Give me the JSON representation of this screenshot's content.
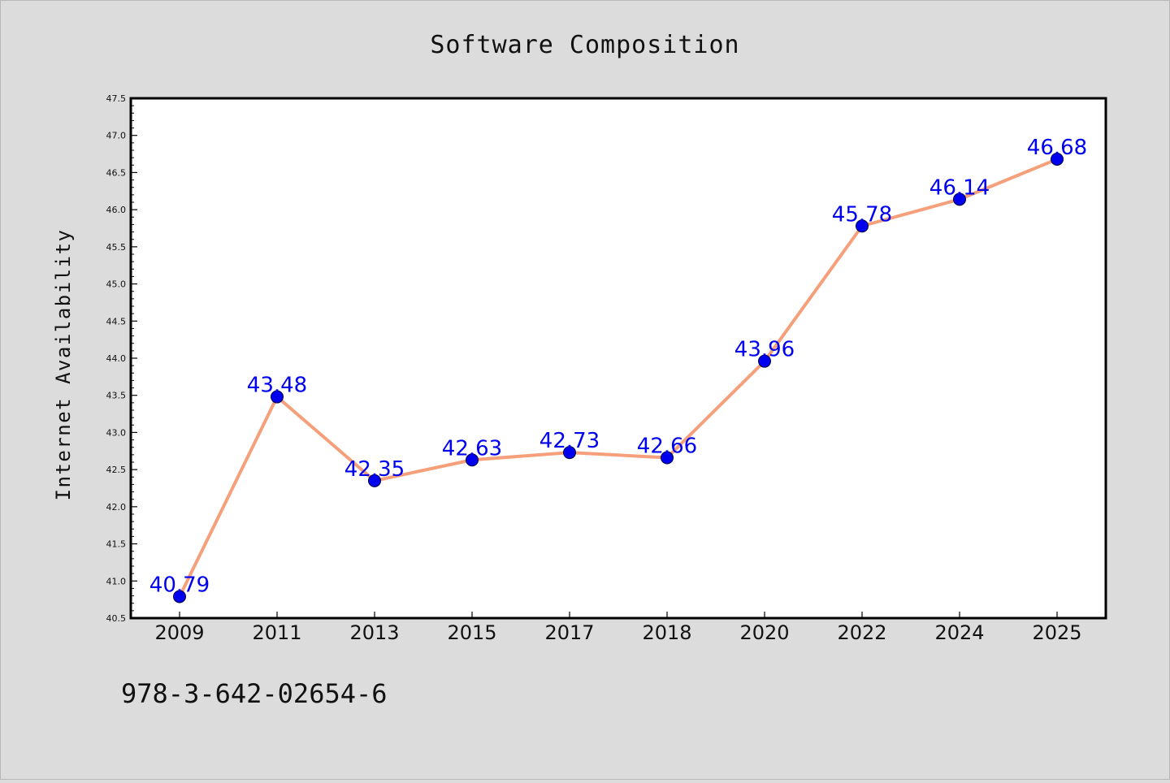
{
  "chart_data": {
    "type": "line",
    "title": "Software Composition",
    "ylabel": "Internet Availability",
    "xlabel": "",
    "categories": [
      "2009",
      "2011",
      "2013",
      "2015",
      "2017",
      "2018",
      "2020",
      "2022",
      "2024",
      "2025"
    ],
    "series": [
      {
        "values": [
          40.79,
          43.48,
          42.35,
          42.63,
          42.73,
          42.66,
          43.96,
          45.78,
          46.14,
          46.68
        ],
        "line_color": "#f5a07a",
        "marker_color": "#0000ee"
      }
    ],
    "data_labels": [
      "40.79",
      "43.48",
      "42.35",
      "42.63",
      "42.73",
      "42.66",
      "43.96",
      "45.78",
      "46.14",
      "46.68"
    ],
    "yticks": [
      "40.5",
      "41.0",
      "41.5",
      "42.0",
      "42.5",
      "43.0",
      "43.5",
      "44.0",
      "44.5",
      "45.0",
      "45.5",
      "46.0",
      "46.5",
      "47.0",
      "47.5"
    ],
    "ylim": [
      40.5,
      47.5
    ],
    "grid": false,
    "legend": "none",
    "annotation": "978-3-642-02654-6"
  }
}
